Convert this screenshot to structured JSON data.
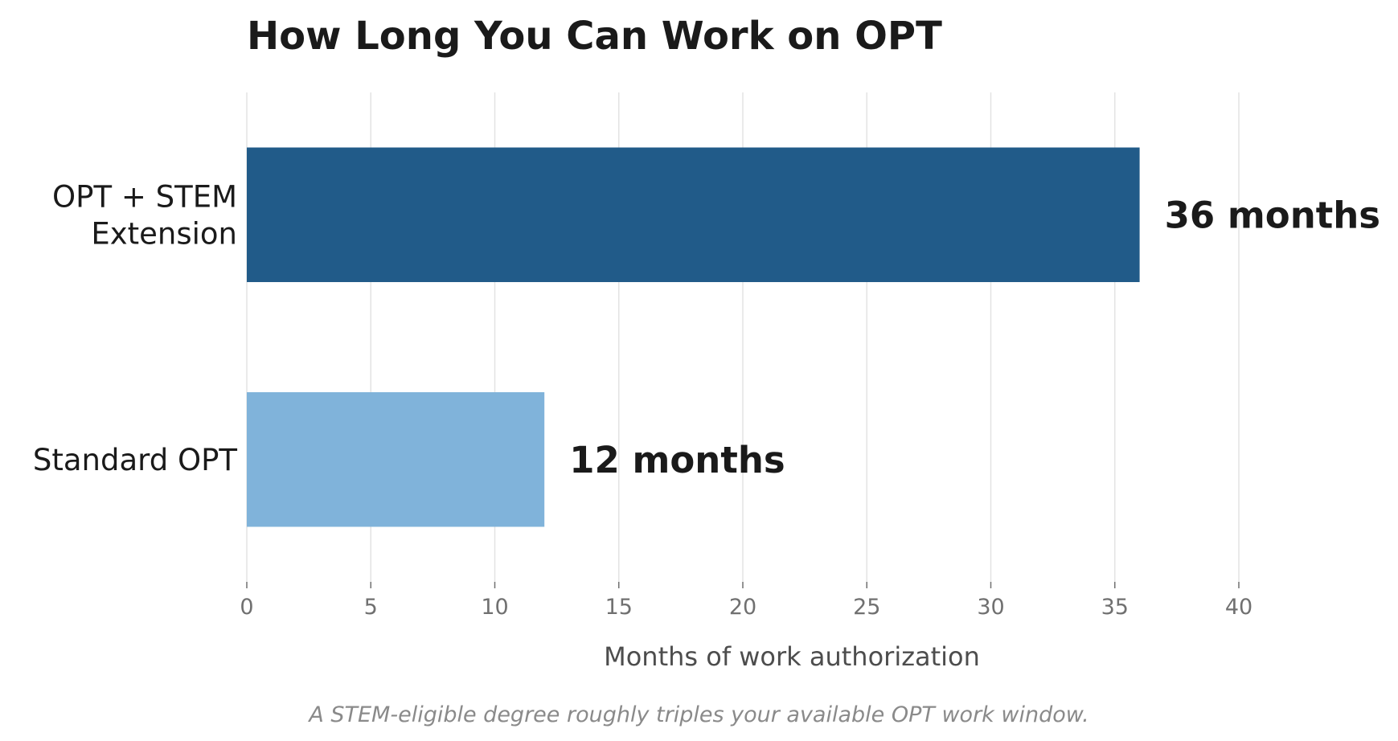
{
  "chart_data": {
    "type": "bar",
    "orientation": "horizontal",
    "title": "How Long You Can Work on OPT",
    "xlabel": "Months of work authorization",
    "ylabel": "",
    "caption": "A STEM-eligible degree roughly triples your available OPT work window.",
    "categories": [
      [
        "OPT + STEM",
        "Extension"
      ],
      [
        "Standard OPT"
      ]
    ],
    "values": [
      36,
      12
    ],
    "value_labels": [
      "36 months",
      "12 months"
    ],
    "colors": [
      "#215b89",
      "#80b3da"
    ],
    "xlim": [
      0,
      40
    ],
    "xticks": [
      0,
      5,
      10,
      15,
      20,
      25,
      30,
      35,
      40
    ],
    "grid": "vertical"
  }
}
